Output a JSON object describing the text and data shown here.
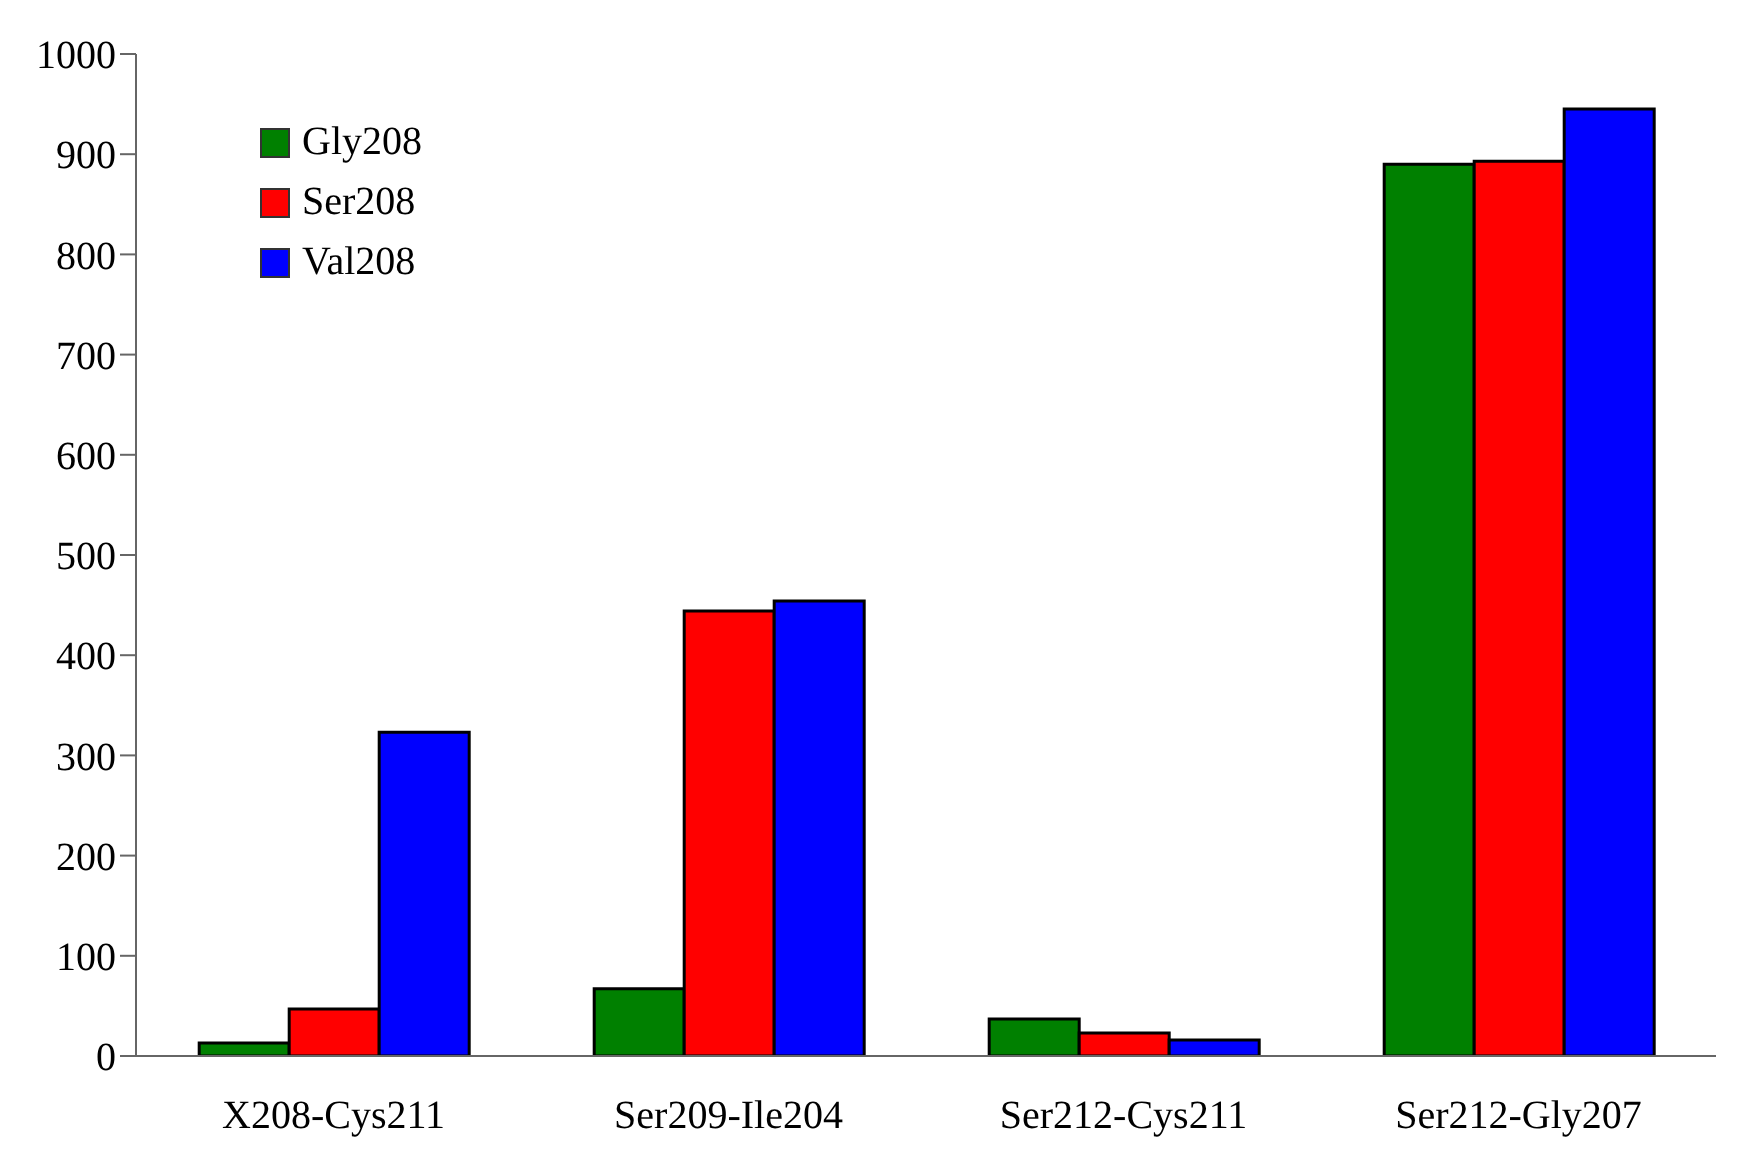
{
  "chart_data": {
    "type": "bar",
    "categories": [
      "X208-Cys211",
      "Ser209-Ile204",
      "Ser212-Cys211",
      "Ser212-Gly207"
    ],
    "series": [
      {
        "name": "Gly208",
        "color": "#008000",
        "values": [
          13,
          67,
          37,
          890
        ]
      },
      {
        "name": "Ser208",
        "color": "#ff0000",
        "values": [
          47,
          444,
          23,
          893
        ]
      },
      {
        "name": "Val208",
        "color": "#0000ff",
        "values": [
          323,
          454,
          16,
          945
        ]
      }
    ],
    "ylim": [
      0,
      1000
    ],
    "yticks": [
      0,
      100,
      200,
      300,
      400,
      500,
      600,
      700,
      800,
      900,
      1000
    ],
    "grid": false,
    "legend": "top left"
  }
}
